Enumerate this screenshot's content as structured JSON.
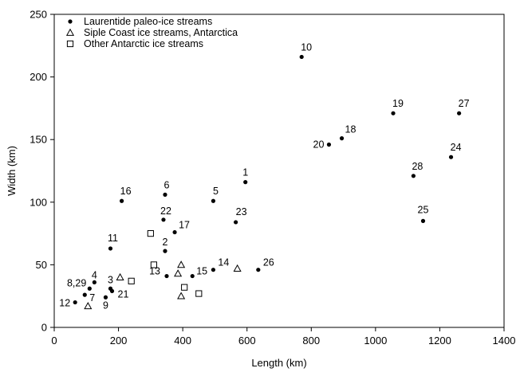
{
  "chart_data": {
    "type": "scatter",
    "xlabel": "Length (km)",
    "ylabel": "Width (km)",
    "xlim": [
      0,
      1400
    ],
    "ylim": [
      0,
      250
    ],
    "xticks": [
      0,
      200,
      400,
      600,
      800,
      1000,
      1200,
      1400
    ],
    "yticks": [
      0,
      50,
      100,
      150,
      200,
      250
    ],
    "grid": false,
    "legend_position": "top-left",
    "series": [
      {
        "name": "Laurentide paleo-ice streams",
        "marker": "filled-circle",
        "points": [
          {
            "label": "10",
            "x": 770,
            "y": 216
          },
          {
            "label": "19",
            "x": 1055,
            "y": 171
          },
          {
            "label": "27",
            "x": 1260,
            "y": 171
          },
          {
            "label": "18",
            "x": 895,
            "y": 151
          },
          {
            "label": "20",
            "x": 855,
            "y": 146
          },
          {
            "label": "24",
            "x": 1235,
            "y": 136
          },
          {
            "label": "28",
            "x": 1118,
            "y": 121
          },
          {
            "label": "1",
            "x": 595,
            "y": 116
          },
          {
            "label": "6",
            "x": 345,
            "y": 106
          },
          {
            "label": "16",
            "x": 210,
            "y": 101
          },
          {
            "label": "5",
            "x": 495,
            "y": 101
          },
          {
            "label": "22",
            "x": 340,
            "y": 86
          },
          {
            "label": "23",
            "x": 565,
            "y": 84
          },
          {
            "label": "25",
            "x": 1148,
            "y": 85
          },
          {
            "label": "17",
            "x": 375,
            "y": 76
          },
          {
            "label": "11",
            "x": 175,
            "y": 63
          },
          {
            "label": "2",
            "x": 345,
            "y": 61
          },
          {
            "label": "14",
            "x": 495,
            "y": 46
          },
          {
            "label": "26",
            "x": 635,
            "y": 46
          },
          {
            "label": "13",
            "x": 350,
            "y": 41
          },
          {
            "label": "15",
            "x": 430,
            "y": 41
          },
          {
            "label": "4",
            "x": 125,
            "y": 36
          },
          {
            "label": "8,29",
            "x": 110,
            "y": 31
          },
          {
            "label": "3",
            "x": 175,
            "y": 31
          },
          {
            "label": "21",
            "x": 180,
            "y": 29
          },
          {
            "label": "7",
            "x": 95,
            "y": 26
          },
          {
            "label": "9",
            "x": 160,
            "y": 24
          },
          {
            "label": "12",
            "x": 65,
            "y": 20
          }
        ]
      },
      {
        "name": "Siple Coast ice streams, Antarctica",
        "marker": "open-triangle",
        "points": [
          {
            "x": 105,
            "y": 17
          },
          {
            "x": 205,
            "y": 40
          },
          {
            "x": 385,
            "y": 43
          },
          {
            "x": 395,
            "y": 50
          },
          {
            "x": 395,
            "y": 25
          },
          {
            "x": 570,
            "y": 47
          }
        ]
      },
      {
        "name": "Other Antarctic ice streams",
        "marker": "open-square",
        "points": [
          {
            "x": 240,
            "y": 37
          },
          {
            "x": 300,
            "y": 75
          },
          {
            "x": 310,
            "y": 50
          },
          {
            "x": 405,
            "y": 32
          },
          {
            "x": 450,
            "y": 27
          }
        ]
      }
    ]
  }
}
